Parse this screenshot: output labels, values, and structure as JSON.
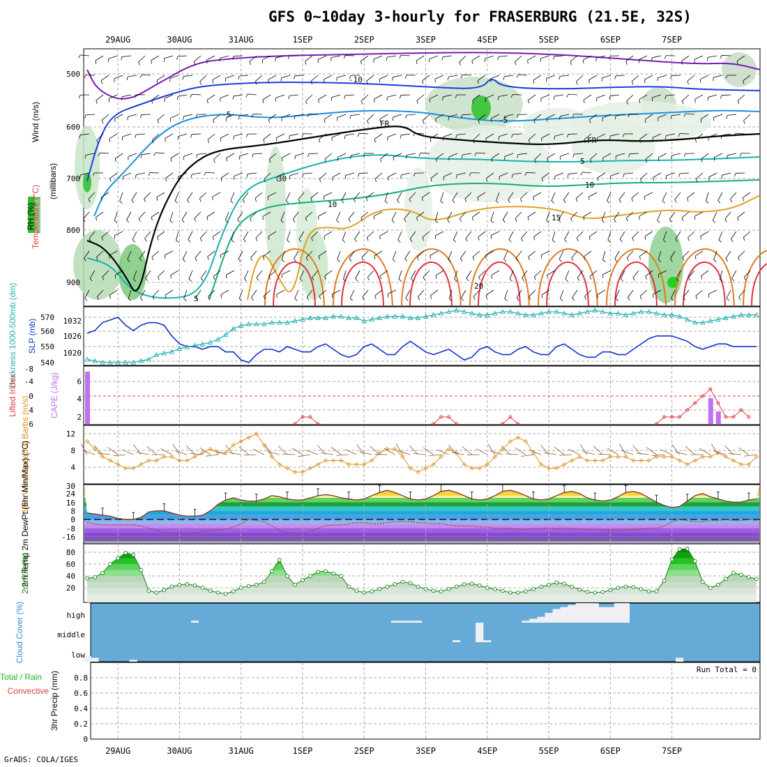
{
  "title": "GFS 0~10day 3-hourly for FRASERBURG (21.5E, 32S)",
  "credit": "GrADS: COLA/IGES",
  "colors": {
    "grid": "#a8a8a8",
    "temp_contours": [
      "#7a18b8",
      "#1a3ce0",
      "#1a90e0",
      "#14b4b0",
      "#10b078",
      "#e0a020",
      "#e07a20",
      "#e03040"
    ],
    "slp": "#1030d0",
    "thickness": "#20b0b0",
    "cape": "#c070f0",
    "lifted_index": "#e04040",
    "wind10m": "#e09020",
    "rh2m": "#108010",
    "cloud_bg": "#66aad8",
    "cloud_fill": "#f0f0f4"
  },
  "chart_data": [
    {
      "panel": "top",
      "type": "heatmap",
      "x_dates": [
        "29AUG",
        "30AUG",
        "31AUG",
        "1SEP",
        "2SEP",
        "3SEP",
        "4SEP",
        "5SEP",
        "6SEP",
        "7SEP"
      ],
      "ylabel_parts": [
        "Wind (m/s)",
        "Temperature (°C)",
        "RH (%)"
      ],
      "ylabel_units": "(millibars)",
      "y_ticks": [
        "500",
        "600",
        "700",
        "800",
        "900"
      ],
      "contour_labels": [
        "-10",
        "-5",
        "FR",
        "5",
        "10",
        "15",
        "20",
        "5",
        "10",
        "FR",
        "-5",
        "5"
      ]
    },
    {
      "panel": "slp_thickness",
      "type": "line",
      "ylabel_left": "Thickness 1000-500mb (dm)",
      "ylabel_right": "SLP (mb)",
      "y_ticks_thickness": [
        "570",
        "560",
        "550",
        "540"
      ],
      "y_ticks_slp": [
        "1032",
        "1026",
        "1020"
      ],
      "series": [
        {
          "name": "SLP",
          "values": [
            1028,
            1029,
            1032,
            1033,
            1034,
            1031,
            1029,
            1031,
            1032,
            1032,
            1031,
            1027,
            1024,
            1023,
            1023,
            1022,
            1023,
            1023,
            1021,
            1021,
            1018,
            1017,
            1020,
            1022,
            1022,
            1021,
            1023,
            1022,
            1021,
            1021,
            1023,
            1024,
            1022,
            1020,
            1019,
            1020,
            1023,
            1024,
            1022,
            1020,
            1020,
            1023,
            1025,
            1023,
            1021,
            1020,
            1021,
            1022,
            1020,
            1018,
            1019,
            1022,
            1023,
            1021,
            1020,
            1020,
            1022,
            1023,
            1021,
            1020,
            1020,
            1023,
            1024,
            1022,
            1020,
            1019,
            1019,
            1021,
            1021,
            1020,
            1020,
            1022,
            1024,
            1026,
            1027,
            1027,
            1027,
            1026,
            1025,
            1023,
            1022,
            1023,
            1024,
            1024,
            1023,
            1023,
            1023,
            1023
          ]
        },
        {
          "name": "Thickness",
          "values": [
            543,
            542,
            541,
            541,
            541,
            541,
            541,
            542,
            543,
            546,
            547,
            548,
            550,
            551,
            552,
            553,
            554,
            556,
            559,
            563,
            565,
            566,
            566,
            566,
            567,
            567,
            567,
            568,
            569,
            570,
            570,
            570,
            571,
            571,
            570,
            570,
            568,
            569,
            570,
            571,
            571,
            571,
            570,
            570,
            571,
            572,
            573,
            574,
            575,
            574,
            573,
            572,
            572,
            573,
            574,
            574,
            573,
            572,
            572,
            573,
            574,
            574,
            573,
            572,
            573,
            574,
            575,
            574,
            573,
            573,
            572,
            573,
            574,
            574,
            573,
            572,
            572,
            571,
            569,
            567,
            567,
            568,
            569,
            570,
            571,
            572,
            572,
            572
          ]
        }
      ]
    },
    {
      "panel": "cape_li",
      "type": "bar",
      "ylabel_left": "Lifted Index",
      "ylabel_right": "CAPE (J/kg)",
      "y_ticks_li": [
        "-8",
        "-4",
        "0",
        "4",
        "6"
      ],
      "y_ticks_cape": [
        "6",
        "4",
        "2"
      ],
      "series": [
        {
          "name": "CAPE",
          "values": [
            {
              "i": 0,
              "v": 8
            },
            {
              "i": 81,
              "v": 4
            },
            {
              "i": 82,
              "v": 2
            }
          ]
        },
        {
          "name": "Lifted Index",
          "values": [
            {
              "i": 27,
              "v": 4
            },
            {
              "i": 28,
              "v": 3
            },
            {
              "i": 29,
              "v": 3
            },
            {
              "i": 30,
              "v": 4
            },
            {
              "i": 45,
              "v": 4
            },
            {
              "i": 46,
              "v": 3
            },
            {
              "i": 47,
              "v": 3
            },
            {
              "i": 48,
              "v": 4
            },
            {
              "i": 54,
              "v": 4
            },
            {
              "i": 55,
              "v": 3
            },
            {
              "i": 56,
              "v": 4
            },
            {
              "i": 73,
              "v": 5
            },
            {
              "i": 74,
              "v": 4
            },
            {
              "i": 75,
              "v": 3
            },
            {
              "i": 76,
              "v": 3
            },
            {
              "i": 77,
              "v": 3
            },
            {
              "i": 78,
              "v": 2
            },
            {
              "i": 79,
              "v": 1
            },
            {
              "i": 80,
              "v": 0
            },
            {
              "i": 81,
              "v": -1
            },
            {
              "i": 82,
              "v": 1
            },
            {
              "i": 83,
              "v": 3
            },
            {
              "i": 84,
              "v": 3
            },
            {
              "i": 85,
              "v": 2
            },
            {
              "i": 86,
              "v": 3
            }
          ]
        }
      ]
    },
    {
      "panel": "wind10m",
      "type": "line",
      "ylabel": "10m Wind Speed & Barbs (m/s)",
      "y_ticks": [
        "12",
        "8",
        "4"
      ],
      "series": [
        {
          "name": "Speed",
          "values": [
            10,
            8,
            6,
            5,
            4,
            3,
            3,
            4,
            5,
            5,
            6,
            6,
            5,
            5,
            6,
            7,
            8,
            7,
            7,
            9,
            10,
            11,
            12,
            9,
            6,
            4,
            3,
            2,
            2,
            3,
            4,
            5,
            5,
            5,
            4,
            4,
            4,
            5,
            7,
            8,
            8,
            6,
            3,
            2,
            3,
            4,
            6,
            8,
            7,
            4,
            3,
            3,
            4,
            6,
            8,
            10,
            11,
            10,
            7,
            4,
            3,
            3,
            4,
            5,
            6,
            5,
            5,
            5,
            6,
            6,
            6,
            5,
            5,
            5,
            6,
            6,
            6,
            5,
            4,
            5,
            6,
            6,
            7,
            6,
            5,
            4,
            4,
            6
          ]
        }
      ]
    },
    {
      "panel": "temp2m",
      "type": "area",
      "ylabel": "2m Temp 2m DewPt (6hr Min/Max) (°C)",
      "y_ticks": [
        "30",
        "24",
        "16",
        "8",
        "0",
        "-8",
        "-16"
      ],
      "series": [
        {
          "name": "Temp",
          "values": [
            6,
            5,
            4,
            3,
            1,
            0,
            0,
            2,
            7,
            8,
            8,
            6,
            4,
            3,
            3,
            4,
            8,
            14,
            18,
            20,
            18,
            17,
            17,
            19,
            22,
            21,
            19,
            18,
            18,
            20,
            22,
            23,
            22,
            20,
            19,
            18,
            19,
            22,
            25,
            27,
            25,
            22,
            19,
            18,
            19,
            22,
            26,
            27,
            25,
            22,
            19,
            18,
            19,
            22,
            26,
            27,
            25,
            22,
            19,
            18,
            19,
            22,
            25,
            26,
            24,
            20,
            18,
            17,
            18,
            21,
            25,
            26,
            24,
            20,
            16,
            13,
            11,
            12,
            17,
            22,
            24,
            21,
            19,
            17,
            16,
            16,
            18,
            19
          ]
        },
        {
          "name": "DewPt",
          "values": [
            -3,
            -4,
            -5,
            -5,
            -5,
            -5,
            -5,
            -6,
            -8,
            -10,
            -12,
            -12,
            -13,
            -13,
            -12,
            -11,
            -10,
            -10,
            -9,
            -7,
            -4,
            0,
            -1,
            -2,
            -6,
            -10,
            -12,
            -13,
            -14,
            -11,
            -8,
            -6,
            -5,
            -5,
            -4,
            -3,
            -3,
            -4,
            -4,
            -3,
            -2,
            -2,
            -2,
            -3,
            -3,
            -4,
            -4,
            -5,
            -6,
            -6,
            -6,
            -7,
            -7,
            -8,
            -8,
            -8,
            -9,
            -9,
            -8,
            -8,
            -8,
            -8,
            -8,
            -8,
            -9,
            -9,
            -9,
            -10,
            -10,
            -10,
            -10,
            -9,
            -9,
            -8,
            -8,
            -6,
            -2,
            0,
            -1,
            -2,
            -2,
            -1,
            -1,
            0,
            -1,
            -1,
            0,
            -1
          ]
        }
      ]
    },
    {
      "panel": "rh2m",
      "type": "area",
      "ylabel": "2m RH (%)",
      "y_ticks": [
        "80",
        "60",
        "40",
        "20"
      ],
      "series": [
        {
          "name": "RH",
          "values": [
            36,
            38,
            45,
            60,
            70,
            79,
            76,
            50,
            15,
            12,
            16,
            22,
            25,
            26,
            24,
            20,
            15,
            12,
            10,
            14,
            20,
            23,
            25,
            30,
            48,
            67,
            40,
            25,
            33,
            40,
            47,
            48,
            44,
            40,
            22,
            15,
            12,
            14,
            18,
            22,
            26,
            30,
            28,
            22,
            18,
            15,
            14,
            18,
            22,
            26,
            27,
            24,
            20,
            18,
            15,
            12,
            12,
            14,
            18,
            22,
            25,
            29,
            27,
            22,
            17,
            13,
            12,
            13,
            16,
            20,
            22,
            21,
            18,
            14,
            14,
            32,
            68,
            85,
            86,
            65,
            30,
            20,
            25,
            35,
            45,
            42,
            38,
            35
          ]
        }
      ]
    },
    {
      "panel": "cloud",
      "type": "area",
      "ylabel": "Cloud Cover (%)",
      "y_ticks": [
        "high",
        "middle",
        "low"
      ],
      "series": [
        {
          "name": "high",
          "values": [
            {
              "i": 14,
              "v": 1
            },
            {
              "i": 40,
              "v": 1
            },
            {
              "i": 41,
              "v": 1
            },
            {
              "i": 42,
              "v": 1
            },
            {
              "i": 43,
              "v": 1
            },
            {
              "i": 57,
              "v": 1
            },
            {
              "i": 58,
              "v": 2
            },
            {
              "i": 59,
              "v": 3
            },
            {
              "i": 60,
              "v": 5
            },
            {
              "i": 61,
              "v": 7
            },
            {
              "i": 62,
              "v": 8
            },
            {
              "i": 63,
              "v": 9
            },
            {
              "i": 64,
              "v": 10
            },
            {
              "i": 65,
              "v": 10
            },
            {
              "i": 66,
              "v": 10
            },
            {
              "i": 67,
              "v": 8
            },
            {
              "i": 68,
              "v": 8
            },
            {
              "i": 69,
              "v": 10
            },
            {
              "i": 70,
              "v": 10
            }
          ]
        },
        {
          "name": "middle",
          "values": [
            {
              "i": 48,
              "v": 1
            },
            {
              "i": 51,
              "v": 10
            },
            {
              "i": 52,
              "v": 1
            }
          ]
        },
        {
          "name": "low",
          "values": [
            {
              "i": 0,
              "v": 3
            },
            {
              "i": 1,
              "v": 2
            },
            {
              "i": 6,
              "v": 1
            },
            {
              "i": 77,
              "v": 2
            }
          ]
        }
      ]
    },
    {
      "panel": "precip",
      "type": "bar",
      "ylabel_left": "Total / Rain Convective",
      "ylabel_right": "3hr Precip (mm)",
      "run_total": "Run Total = 0",
      "y_ticks": [
        "0.8",
        "0.6",
        "0.4",
        "0.2",
        "0"
      ],
      "series": [
        {
          "name": "Precip",
          "values": []
        }
      ]
    }
  ]
}
